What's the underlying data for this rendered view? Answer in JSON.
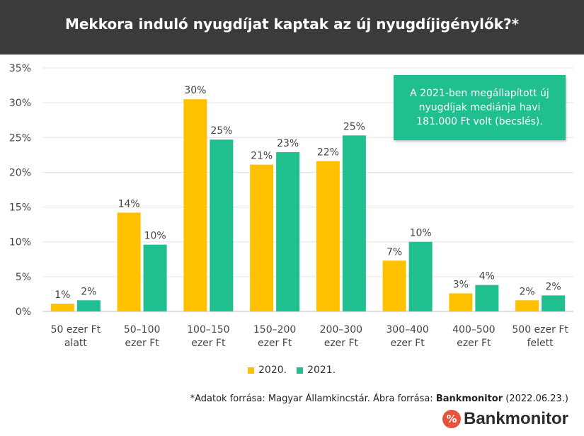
{
  "chart_data": {
    "type": "bar",
    "title": "Mekkora induló nyugdíjat kaptak az új nyugdíjigénylők?*",
    "categories": [
      [
        "50 ezer Ft",
        "alatt"
      ],
      [
        "50–100",
        "ezer Ft"
      ],
      [
        "100–150",
        "ezer Ft"
      ],
      [
        "150–200",
        "ezer Ft"
      ],
      [
        "200–300",
        "ezer Ft"
      ],
      [
        "300–400",
        "ezer Ft"
      ],
      [
        "400–500",
        "ezer Ft"
      ],
      [
        "500 ezer Ft",
        "felett"
      ]
    ],
    "series": [
      {
        "name": "2020.",
        "color": "#ffc000",
        "values": [
          1.1,
          14.2,
          30.5,
          21.1,
          21.6,
          7.3,
          2.6,
          1.6
        ],
        "labels": [
          "1%",
          "14%",
          "30%",
          "21%",
          "22%",
          "7%",
          "3%",
          "2%"
        ]
      },
      {
        "name": "2021.",
        "color": "#1fbf8f",
        "values": [
          1.6,
          9.6,
          24.7,
          22.9,
          25.3,
          10.0,
          3.8,
          2.3
        ],
        "labels": [
          "2%",
          "10%",
          "25%",
          "23%",
          "25%",
          "10%",
          "4%",
          "2%"
        ]
      }
    ],
    "ylim": [
      0,
      35
    ],
    "yticks": [
      "0%",
      "5%",
      "10%",
      "15%",
      "20%",
      "25%",
      "30%",
      "35%"
    ],
    "grid": true,
    "legend_position": "bottom",
    "annotation": "A 2021-ben megállapított új nyugdíjak mediánja havi 181.000 Ft volt (becslés)."
  },
  "source": {
    "prefix": "*Adatok forrása: Magyar Államkincstár. Ábra forrása: ",
    "brand": "Bankmonitor",
    "date": " (2022.06.23.)"
  },
  "brand": {
    "logo": "%",
    "name": "Bankmonitor"
  }
}
